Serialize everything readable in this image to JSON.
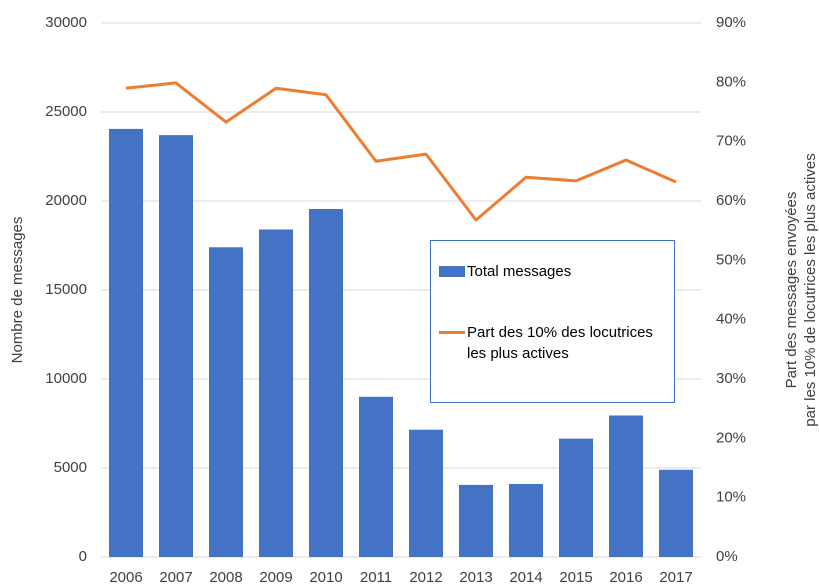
{
  "chart_data": {
    "type": "bar",
    "categories": [
      "2006",
      "2007",
      "2008",
      "2009",
      "2010",
      "2011",
      "2012",
      "2013",
      "2014",
      "2015",
      "2016",
      "2017"
    ],
    "series": [
      {
        "name": "Total messages",
        "type": "bar",
        "color": "#4472c4",
        "values": [
          24050,
          23700,
          17400,
          18400,
          19550,
          9000,
          7150,
          4050,
          4100,
          6650,
          7950,
          4900
        ]
      },
      {
        "name": "Part des 10% des locutrices les plus actives",
        "type": "line",
        "axis": "y2",
        "color": "#ed7d31",
        "values": [
          79.0,
          79.9,
          73.3,
          79.0,
          77.9,
          66.7,
          67.9,
          56.8,
          64.0,
          63.4,
          66.9,
          63.2
        ]
      }
    ],
    "ylabel": "Nombre de messages",
    "y2label": [
      "Part des messages envoyées",
      "par les 10% de locutrices les plus actives"
    ],
    "ylim": [
      0,
      30000
    ],
    "yticks": [
      0,
      5000,
      10000,
      15000,
      20000,
      25000,
      30000
    ],
    "y2lim": [
      0,
      90
    ],
    "y2ticks": [
      {
        "value": 0,
        "label": "0%"
      },
      {
        "value": 10,
        "label": "10%"
      },
      {
        "value": 20,
        "label": "20%"
      },
      {
        "value": 30,
        "label": "30%"
      },
      {
        "value": 40,
        "label": "40%"
      },
      {
        "value": 50,
        "label": "50%"
      },
      {
        "value": 60,
        "label": "60%"
      },
      {
        "value": 70,
        "label": "70%"
      },
      {
        "value": 80,
        "label": "80%"
      },
      {
        "value": 90,
        "label": "90%"
      }
    ],
    "grid": true,
    "legend": "right"
  }
}
